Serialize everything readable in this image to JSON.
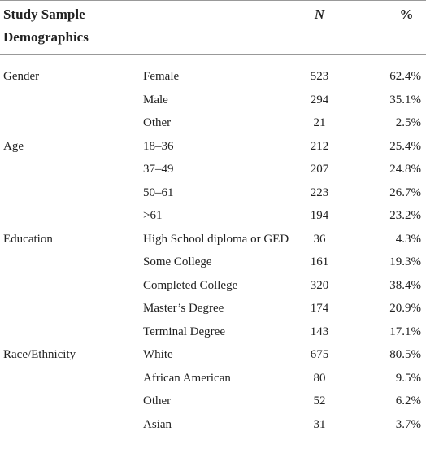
{
  "header": {
    "title": "Study Sample Demographics",
    "columns": [
      "N",
      "%"
    ]
  },
  "groups": [
    {
      "label": "Gender",
      "rows": [
        [
          "Female",
          "523",
          "62.4%"
        ],
        [
          "Male",
          "294",
          "35.1%"
        ],
        [
          "Other",
          "21",
          "2.5%"
        ]
      ]
    },
    {
      "label": "Age",
      "rows": [
        [
          "18–36",
          "212",
          "25.4%"
        ],
        [
          "37–49",
          "207",
          "24.8%"
        ],
        [
          "50–61",
          "223",
          "26.7%"
        ],
        [
          ">61",
          "194",
          "23.2%"
        ]
      ]
    },
    {
      "label": "Education",
      "rows": [
        [
          "High School diploma or GED",
          "36",
          "4.3%"
        ],
        [
          "Some College",
          "161",
          "19.3%"
        ],
        [
          "Completed College",
          "320",
          "38.4%"
        ],
        [
          "Master’s Degree",
          "174",
          "20.9%"
        ],
        [
          "Terminal Degree",
          "143",
          "17.1%"
        ]
      ]
    },
    {
      "label": "Race/Ethnicity",
      "rows": [
        [
          "White",
          "675",
          "80.5%"
        ],
        [
          "African American",
          "80",
          "9.5%"
        ],
        [
          "Other",
          "52",
          "6.2%"
        ],
        [
          "Asian",
          "31",
          "3.7%"
        ]
      ]
    }
  ]
}
